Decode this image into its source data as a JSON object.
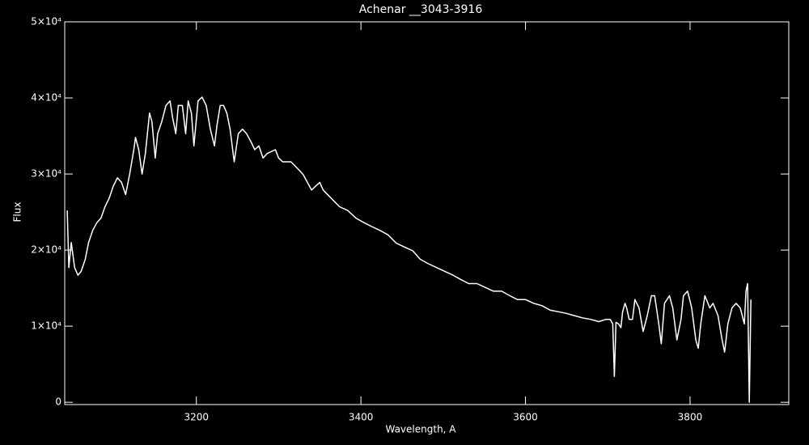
{
  "chart_data": {
    "type": "line",
    "title": "Achenar __3043-3916",
    "x_label": "Wavelength, A",
    "y_label": "Flux",
    "xlim": [
      3040,
      3920
    ],
    "ylim": [
      -300,
      50000
    ],
    "xticks": [
      3200,
      3400,
      3600,
      3800
    ],
    "yticks": [
      0,
      {
        "value": 10000,
        "label": "1×10⁴"
      },
      {
        "value": 20000,
        "label": "2×10⁴"
      },
      {
        "value": 30000,
        "label": "3×10⁴"
      },
      {
        "value": 40000,
        "label": "4×10⁴"
      },
      {
        "value": 50000,
        "label": "5×10⁴"
      }
    ],
    "grid": false,
    "color": "#ffffff",
    "x": [
      3043,
      3045,
      3048,
      3052,
      3056,
      3060,
      3065,
      3069,
      3074,
      3079,
      3084,
      3089,
      3094,
      3099,
      3104,
      3109,
      3114,
      3119,
      3124,
      3126,
      3130,
      3134,
      3138,
      3143,
      3146,
      3150,
      3153,
      3158,
      3163,
      3168,
      3171,
      3175,
      3178,
      3183,
      3187,
      3190,
      3194,
      3197,
      3202,
      3207,
      3212,
      3217,
      3222,
      3225,
      3229,
      3233,
      3237,
      3241,
      3246,
      3251,
      3256,
      3261,
      3266,
      3271,
      3276,
      3281,
      3286,
      3296,
      3300,
      3305,
      3315,
      3325,
      3330,
      3335,
      3340,
      3345,
      3350,
      3354,
      3364,
      3374,
      3384,
      3394,
      3404,
      3413,
      3423,
      3433,
      3443,
      3453,
      3463,
      3472,
      3482,
      3492,
      3502,
      3512,
      3522,
      3531,
      3541,
      3551,
      3561,
      3571,
      3581,
      3590,
      3600,
      3610,
      3620,
      3630,
      3640,
      3649,
      3659,
      3669,
      3679,
      3689,
      3698,
      3703,
      3706,
      3708,
      3710,
      3713,
      3716,
      3718,
      3721,
      3723,
      3726,
      3730,
      3733,
      3738,
      3743,
      3748,
      3753,
      3757,
      3762,
      3765,
      3769,
      3775,
      3779,
      3784,
      3789,
      3792,
      3797,
      3802,
      3807,
      3810,
      3813,
      3818,
      3824,
      3828,
      3834,
      3839,
      3842,
      3846,
      3851,
      3856,
      3861,
      3866,
      3868,
      3870,
      3872,
      3874
    ],
    "values": [
      25200,
      17700,
      21000,
      17700,
      16700,
      17200,
      18800,
      21000,
      22600,
      23600,
      24200,
      25700,
      26800,
      28400,
      29500,
      28900,
      27300,
      30000,
      33200,
      34800,
      33200,
      30000,
      32700,
      38000,
      36900,
      32100,
      35300,
      36900,
      39000,
      39600,
      37500,
      35300,
      39000,
      39000,
      35300,
      39600,
      38000,
      33700,
      39600,
      40100,
      39000,
      35900,
      33700,
      36400,
      39000,
      39000,
      38000,
      35900,
      31600,
      35300,
      35900,
      35300,
      34300,
      33200,
      33700,
      32100,
      32700,
      33200,
      32100,
      31600,
      31600,
      30500,
      29900,
      28900,
      27900,
      28400,
      28900,
      27900,
      26800,
      25700,
      25200,
      24200,
      23600,
      23100,
      22600,
      22000,
      20900,
      20400,
      19900,
      18800,
      18200,
      17700,
      17200,
      16700,
      16100,
      15600,
      15600,
      15100,
      14600,
      14600,
      14000,
      13500,
      13500,
      13000,
      12700,
      12100,
      11900,
      11700,
      11400,
      11100,
      10900,
      10600,
      10900,
      10900,
      10300,
      3400,
      10500,
      10300,
      9800,
      11900,
      13000,
      12400,
      10900,
      10900,
      13500,
      12400,
      9300,
      11400,
      14000,
      14000,
      10300,
      7700,
      13000,
      14000,
      12400,
      8200,
      10900,
      14000,
      14600,
      12400,
      8200,
      7100,
      10300,
      14000,
      12400,
      13000,
      11400,
      8200,
      6600,
      10300,
      12400,
      13000,
      12400,
      10300,
      14600,
      15600,
      0,
      13500
    ]
  }
}
